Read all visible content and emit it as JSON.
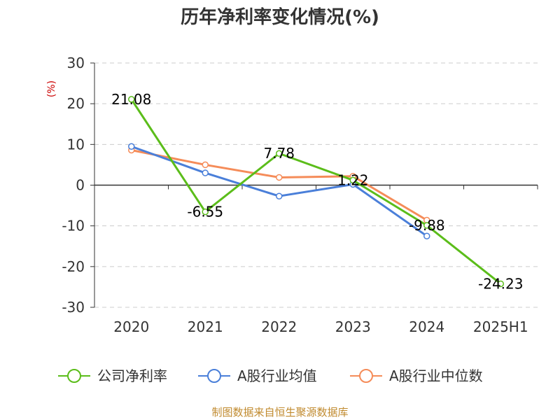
{
  "chart_data": {
    "type": "line",
    "title": "历年净利率变化情况(%)",
    "ylabel": "(%)",
    "xlabel": "",
    "ylim": [
      -30,
      30
    ],
    "yticks": [
      30,
      20,
      10,
      0,
      -10,
      -20,
      -30
    ],
    "categories": [
      "2020",
      "2021",
      "2022",
      "2023",
      "2024",
      "2025H1"
    ],
    "series": [
      {
        "name": "公司净利率",
        "color": "#5bbd1a",
        "values": [
          21.08,
          -6.55,
          7.78,
          1.22,
          -9.88,
          -24.23
        ],
        "labels": [
          "21.08",
          "-6.55",
          "7.78",
          "1.22",
          "-9.88",
          "-24.23"
        ]
      },
      {
        "name": "A股行业均值",
        "color": "#4a7fd9",
        "values": [
          9.5,
          3.0,
          -2.7,
          0.2,
          -12.5,
          null
        ]
      },
      {
        "name": "A股行业中位数",
        "color": "#f58c59",
        "values": [
          8.6,
          5.0,
          1.9,
          2.2,
          -8.6,
          null
        ]
      }
    ]
  },
  "source": "制图数据来自恒生聚源数据库"
}
